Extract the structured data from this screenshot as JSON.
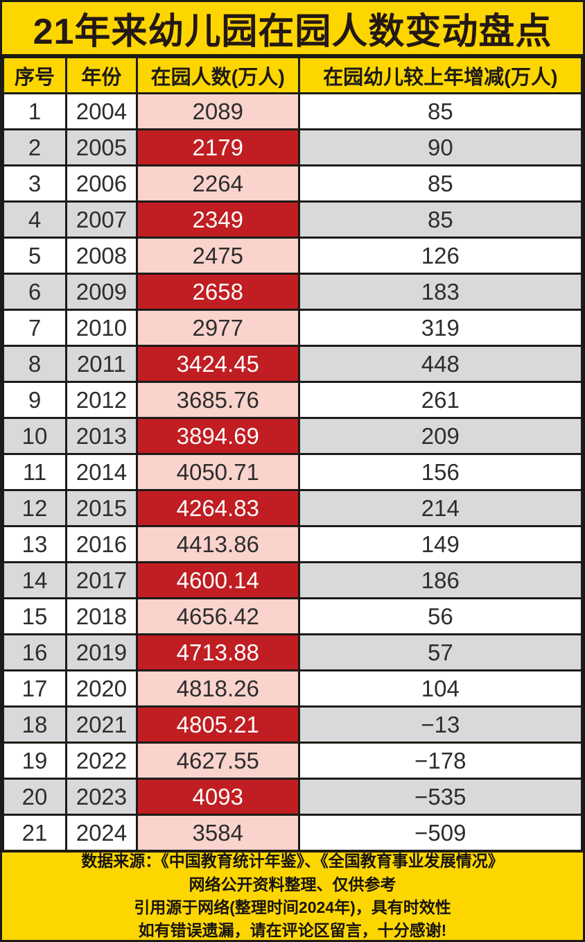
{
  "title": "21年来幼儿园在园人数变动盘点",
  "table": {
    "headers": [
      "序号",
      "年份",
      "在园人数(万人)",
      "在园幼儿较上年增减(万人)"
    ],
    "rows": [
      {
        "index": "1",
        "year": "2004",
        "enrolled": "2089",
        "change": "85"
      },
      {
        "index": "2",
        "year": "2005",
        "enrolled": "2179",
        "change": "90"
      },
      {
        "index": "3",
        "year": "2006",
        "enrolled": "2264",
        "change": "85"
      },
      {
        "index": "4",
        "year": "2007",
        "enrolled": "2349",
        "change": "85"
      },
      {
        "index": "5",
        "year": "2008",
        "enrolled": "2475",
        "change": "126"
      },
      {
        "index": "6",
        "year": "2009",
        "enrolled": "2658",
        "change": "183"
      },
      {
        "index": "7",
        "year": "2010",
        "enrolled": "2977",
        "change": "319"
      },
      {
        "index": "8",
        "year": "2011",
        "enrolled": "3424.45",
        "change": "448"
      },
      {
        "index": "9",
        "year": "2012",
        "enrolled": "3685.76",
        "change": "261"
      },
      {
        "index": "10",
        "year": "2013",
        "enrolled": "3894.69",
        "change": "209"
      },
      {
        "index": "11",
        "year": "2014",
        "enrolled": "4050.71",
        "change": "156"
      },
      {
        "index": "12",
        "year": "2015",
        "enrolled": "4264.83",
        "change": "214"
      },
      {
        "index": "13",
        "year": "2016",
        "enrolled": "4413.86",
        "change": "149"
      },
      {
        "index": "14",
        "year": "2017",
        "enrolled": "4600.14",
        "change": "186"
      },
      {
        "index": "15",
        "year": "2018",
        "enrolled": "4656.42",
        "change": "56"
      },
      {
        "index": "16",
        "year": "2019",
        "enrolled": "4713.88",
        "change": "57"
      },
      {
        "index": "17",
        "year": "2020",
        "enrolled": "4818.26",
        "change": "104"
      },
      {
        "index": "18",
        "year": "2021",
        "enrolled": "4805.21",
        "change": "−13"
      },
      {
        "index": "19",
        "year": "2022",
        "enrolled": "4627.55",
        "change": "−178"
      },
      {
        "index": "20",
        "year": "2023",
        "enrolled": "4093",
        "change": "−535"
      },
      {
        "index": "21",
        "year": "2024",
        "enrolled": "3584",
        "change": "−509"
      }
    ]
  },
  "footer": {
    "lines": [
      "数据来源：《中国教育统计年鉴》、《全国教育事业发展情况》",
      "网络公开资料整理、仅供参考",
      "引用源于网络(整理时间2024年)，具有时效性",
      "如有错误遗漏，请在评论区留言，十分感谢!"
    ]
  },
  "colors": {
    "yellow": "#FDD600",
    "highlight_red": "#C01E22",
    "highlight_pink": "#FAD3CD",
    "row_gray": "#D8D9DA",
    "border_black": "#1D1A17",
    "white_text": "#FFFFFF"
  },
  "chart_data": {
    "type": "table",
    "title": "21年来幼儿园在园人数变动盘点",
    "columns": [
      "序号",
      "年份",
      "在园人数(万人)",
      "在园幼儿较上年增减(万人)"
    ],
    "years": [
      2004,
      2005,
      2006,
      2007,
      2008,
      2009,
      2010,
      2011,
      2012,
      2013,
      2014,
      2015,
      2016,
      2017,
      2018,
      2019,
      2020,
      2021,
      2022,
      2023,
      2024
    ],
    "series": [
      {
        "name": "在园人数(万人)",
        "values": [
          2089,
          2179,
          2264,
          2349,
          2475,
          2658,
          2977,
          3424.45,
          3685.76,
          3894.69,
          4050.71,
          4264.83,
          4413.86,
          4600.14,
          4656.42,
          4713.88,
          4818.26,
          4805.21,
          4627.55,
          4093,
          3584
        ]
      },
      {
        "name": "在园幼儿较上年增减(万人)",
        "values": [
          85,
          90,
          85,
          85,
          126,
          183,
          319,
          448,
          261,
          209,
          156,
          214,
          149,
          186,
          56,
          57,
          104,
          -13,
          -178,
          -535,
          -509
        ]
      }
    ]
  }
}
